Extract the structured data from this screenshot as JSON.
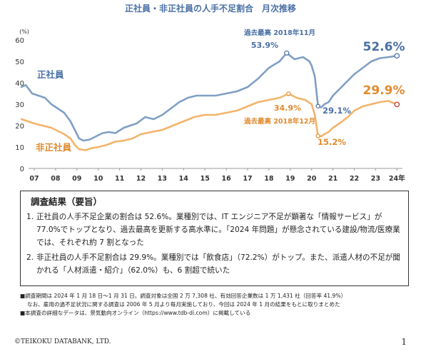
{
  "chart_data": {
    "type": "line",
    "title": "正社員・非正社員の人手不足割合　月次推移",
    "ylabel": "(%)",
    "ylim": [
      0,
      60
    ],
    "yticks": [
      0,
      10,
      20,
      30,
      40,
      50,
      60
    ],
    "xticks": [
      "07",
      "08",
      "09",
      "10",
      "11",
      "12",
      "13",
      "14",
      "15",
      "16",
      "17",
      "18",
      "19",
      "20",
      "21",
      "22",
      "23",
      "24年"
    ],
    "grid": false,
    "legend": "inline labels",
    "series": [
      {
        "name": "正社員",
        "color": "#7f9fc5",
        "x": [
          2006.4,
          2006.6,
          2006.9,
          2007.2,
          2007.5,
          2007.8,
          2008.1,
          2008.4,
          2008.7,
          2008.9,
          2009.1,
          2009.3,
          2009.6,
          2009.9,
          2010.2,
          2010.5,
          2010.8,
          2011.2,
          2011.5,
          2011.8,
          2012.2,
          2012.6,
          2013.0,
          2013.4,
          2013.8,
          2014.2,
          2014.6,
          2015.0,
          2015.5,
          2016.0,
          2016.5,
          2017.0,
          2017.5,
          2018.0,
          2018.5,
          2018.83,
          2019.2,
          2019.6,
          2019.9,
          2020.0,
          2020.15,
          2020.3,
          2020.45,
          2020.6,
          2020.8,
          2021.0,
          2021.3,
          2021.6,
          2022.0,
          2022.4,
          2022.8,
          2023.2,
          2023.6,
          2024.0
        ],
        "values": [
          38,
          39,
          35,
          34,
          33,
          30,
          28,
          26,
          22,
          18,
          14,
          13,
          13.5,
          15,
          16.5,
          17,
          16.5,
          19,
          20,
          21,
          24,
          23,
          25,
          28,
          31,
          33,
          34,
          34,
          34,
          35,
          36,
          38,
          42,
          47,
          50,
          53.9,
          51,
          52,
          50,
          48,
          43,
          29.1,
          28.5,
          30,
          31,
          34,
          37,
          40,
          44,
          47,
          50,
          51.5,
          52,
          52.6
        ]
      },
      {
        "name": "非正社員",
        "color": "#f2b46b",
        "x": [
          2006.4,
          2006.7,
          2007.0,
          2007.4,
          2007.8,
          2008.1,
          2008.4,
          2008.7,
          2008.9,
          2009.1,
          2009.4,
          2009.7,
          2010.0,
          2010.4,
          2010.8,
          2011.2,
          2011.6,
          2012.0,
          2012.5,
          2013.0,
          2013.5,
          2014.0,
          2014.5,
          2015.0,
          2015.5,
          2016.0,
          2016.5,
          2017.0,
          2017.5,
          2018.0,
          2018.5,
          2018.92,
          2019.3,
          2019.7,
          2020.0,
          2020.15,
          2020.3,
          2020.45,
          2020.6,
          2020.8,
          2021.0,
          2021.3,
          2021.7,
          2022.0,
          2022.4,
          2022.8,
          2023.2,
          2023.6,
          2024.0
        ],
        "values": [
          23,
          22,
          21,
          20,
          19,
          17.5,
          16,
          14,
          11,
          9,
          8.5,
          9.5,
          10,
          11,
          12.5,
          13,
          14,
          16,
          17,
          18,
          20,
          22,
          24,
          25,
          25,
          26,
          27,
          29,
          31,
          32,
          33,
          34.9,
          33,
          32,
          30,
          25,
          15.2,
          15,
          16,
          17,
          19,
          21,
          24,
          27,
          29,
          30,
          31,
          31.5,
          29.9
        ]
      }
    ],
    "annotations": [
      {
        "text": "過去最高 2018年11月",
        "color": "#4a6fa5"
      },
      {
        "text": "53.9%",
        "color": "#4a6fa5"
      },
      {
        "text": "52.6%",
        "color": "#4a6fa5"
      },
      {
        "text": "29.1%",
        "color": "#4a6fa5"
      },
      {
        "text": "34.9%",
        "color": "#e08a2e"
      },
      {
        "text": "過去最高 2018年12月",
        "color": "#e08a2e"
      },
      {
        "text": "29.9%",
        "color": "#e08a2e"
      },
      {
        "text": "15.2%",
        "color": "#e08a2e"
      }
    ]
  },
  "summary": {
    "title": "調査結果（要旨）",
    "items": [
      {
        "num": "1.",
        "text": "正社員の人手不足企業の割合は 52.6%。業種別では、IT エンジニア不足が顕著な「情報サービス」が 77.0%でトップとなり、過去最高を更新する高水準に。「2024 年問題」が懸念されている建設/物流/医療業では、それぞれ約 7 割となった"
      },
      {
        "num": "2.",
        "text": "非正社員の人手不足割合は 29.9%。業種別では「飲食店」（72.2%）がトップ。また、派遣人材の不足が聞かれる「人材派遣・紹介」（62.0%）も、6 割超で続いた"
      }
    ]
  },
  "notes": [
    "■調査期間は 2024 年 1 月 18 日～1 月 31 日。調査対象は全国 2 万 7,308 社、有効回答企業数は 1 万 1,431 社（回答率 41.9%）",
    "なお、雇用の過不足状況に関する調査は 2006 年 5 月より毎月実施しており、今回は 2024 年 1 月の結果をもとに取りまとめた",
    "■本調査の詳細なデータは、景気動向オンライン（https://www.tdb-di.com）に掲載している"
  ],
  "footer": {
    "copyright": "©TEIKOKU DATABANK, LTD.",
    "page_number": "1"
  }
}
